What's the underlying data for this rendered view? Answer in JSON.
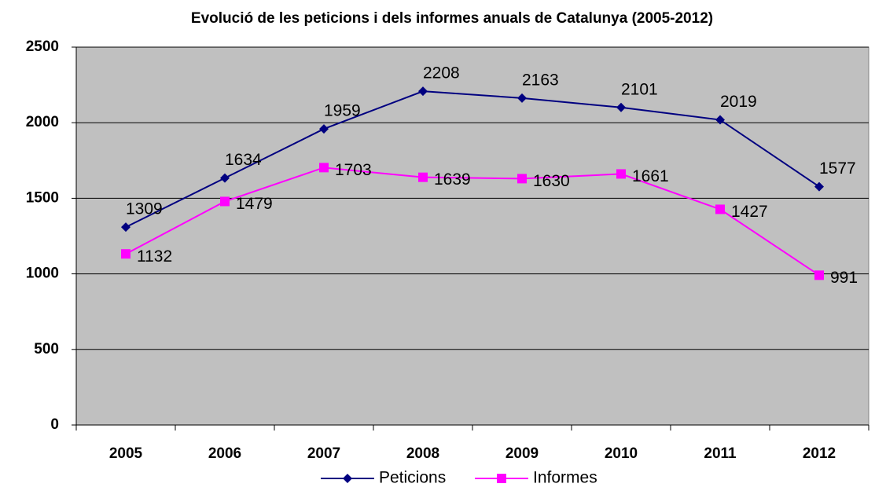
{
  "chart_data": {
    "type": "line",
    "title": "Evolució de les peticions i dels informes anuals de Catalunya (2005-2012)",
    "categories": [
      "2005",
      "2006",
      "2007",
      "2008",
      "2009",
      "2010",
      "2011",
      "2012"
    ],
    "series": [
      {
        "name": "Peticions",
        "color": "#000080",
        "marker": "diamond",
        "values": [
          1309,
          1634,
          1959,
          2208,
          2163,
          2101,
          2019,
          1577
        ]
      },
      {
        "name": "Informes",
        "color": "#ff00ff",
        "marker": "square",
        "values": [
          1132,
          1479,
          1703,
          1639,
          1630,
          1661,
          1427,
          991
        ]
      }
    ],
    "ylim": [
      0,
      2500
    ],
    "yticks": [
      0,
      500,
      1000,
      1500,
      2000,
      2500
    ],
    "grid": true,
    "legend": "bottom"
  }
}
